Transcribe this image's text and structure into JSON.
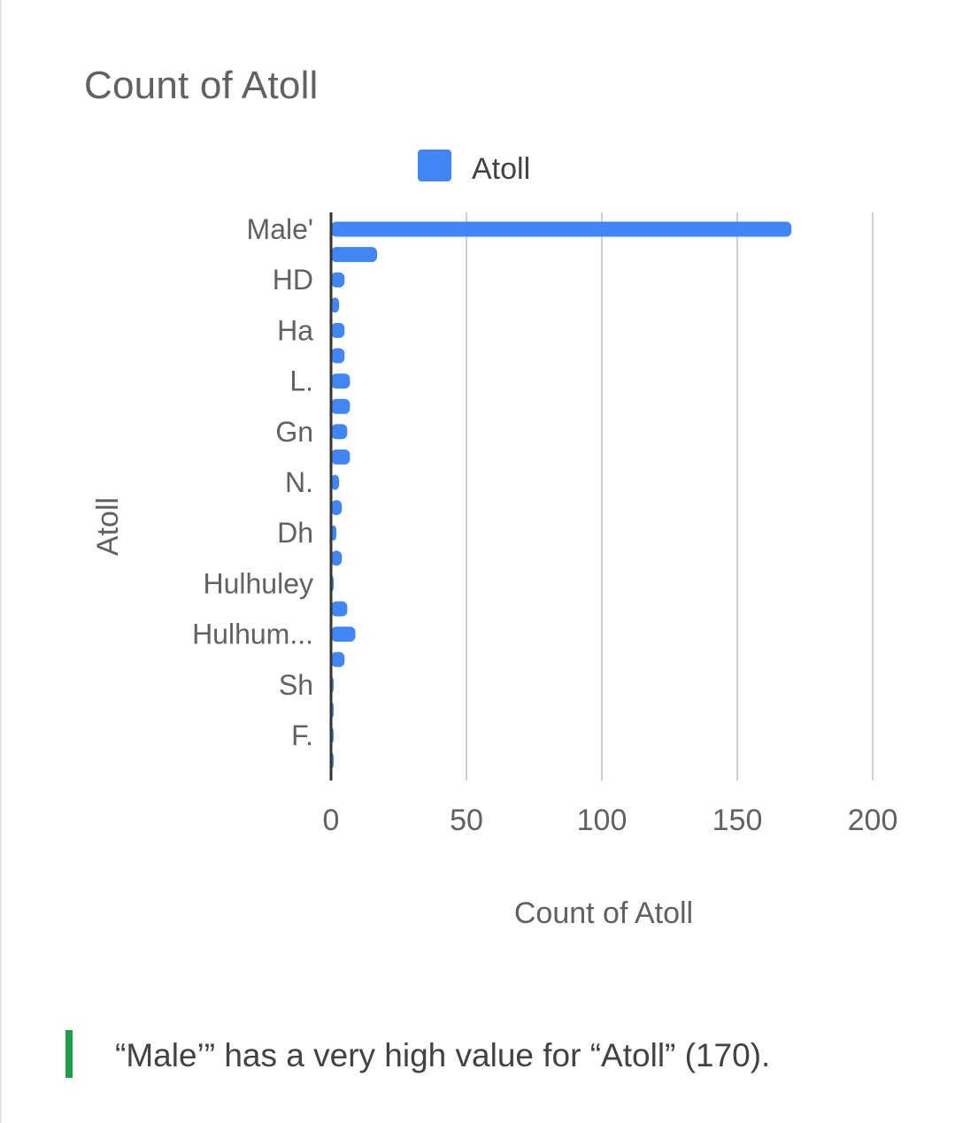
{
  "chart_data": {
    "type": "bar",
    "orientation": "horizontal",
    "title": "Count of Atoll",
    "xlabel": "Count of Atoll",
    "ylabel": "Atoll",
    "legend": {
      "position": "top",
      "entries": [
        "Atoll"
      ]
    },
    "xlim": [
      0,
      200
    ],
    "xticks": [
      "0",
      "50",
      "100",
      "150",
      "200"
    ],
    "grid": true,
    "series": [
      {
        "name": "Atoll",
        "color": "#4285f4",
        "values": [
          170,
          17,
          5,
          3,
          5,
          5,
          7,
          7,
          6,
          7,
          3,
          4,
          2,
          4,
          1,
          6,
          9,
          5,
          1,
          1,
          1,
          1
        ]
      }
    ],
    "categories": [
      "Male'",
      "",
      "HD",
      "",
      "Ha",
      "",
      "L.",
      "",
      "Gn",
      "",
      "N.",
      "",
      "Dh",
      "",
      "Hulhuley",
      "",
      "Hulhum...",
      "",
      "Sh",
      "",
      "F.",
      ""
    ]
  },
  "insight": {
    "text": "“Male’” has a very high value for “Atoll” (170).",
    "accent_color": "#1e9e4a"
  }
}
